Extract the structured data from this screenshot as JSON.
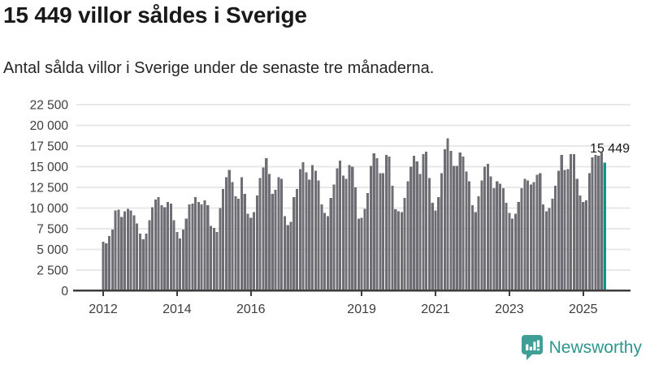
{
  "header": {
    "title": "15 449 villor såldes i Sverige",
    "subtitle": "Antal sålda villor i Sverige under de senaste tre månaderna."
  },
  "chart_data": {
    "type": "bar",
    "title": "15 449 villor såldes i Sverige",
    "subtitle": "Antal sålda villor i Sverige under de senaste tre månaderna.",
    "x_start": "2012-01",
    "x_end": "2025-08",
    "frequency": "monthly",
    "values": [
      5900,
      5700,
      6600,
      7400,
      9700,
      9800,
      8900,
      9600,
      9900,
      9700,
      9100,
      8100,
      6900,
      6200,
      6900,
      8500,
      10100,
      11000,
      11300,
      10300,
      10100,
      10700,
      10500,
      8500,
      7100,
      6300,
      7400,
      8700,
      10400,
      10500,
      11300,
      10700,
      10400,
      10900,
      10300,
      7800,
      7600,
      7100,
      10000,
      12300,
      13700,
      14600,
      13100,
      11400,
      11100,
      13700,
      11700,
      9300,
      8800,
      9500,
      11500,
      13600,
      14900,
      16000,
      14100,
      11700,
      12200,
      13700,
      13500,
      9000,
      7900,
      8300,
      11300,
      12300,
      14700,
      15500,
      14300,
      13400,
      15200,
      14500,
      13300,
      10400,
      9400,
      9000,
      11200,
      12800,
      14800,
      15700,
      13900,
      13500,
      15200,
      15000,
      12500,
      8700,
      8800,
      9900,
      11800,
      15100,
      16600,
      16000,
      14200,
      14200,
      16400,
      16200,
      12700,
      9850,
      9600,
      9500,
      11200,
      13200,
      15000,
      16300,
      15600,
      14100,
      16500,
      16800,
      13600,
      10600,
      9700,
      11300,
      14200,
      17100,
      18400,
      16900,
      15100,
      15100,
      16700,
      16200,
      14400,
      13200,
      10300,
      9500,
      11400,
      13300,
      15000,
      15300,
      13800,
      12400,
      13200,
      12900,
      12400,
      10600,
      9400,
      8700,
      9300,
      10700,
      12400,
      13500,
      13300,
      12800,
      13100,
      14000,
      14200,
      10400,
      9600,
      10000,
      11100,
      12700,
      14500,
      16400,
      14600,
      14700,
      16500,
      16500,
      13500,
      11500,
      10700,
      10900,
      14200,
      16100,
      16400,
      16300,
      16700,
      15449
    ],
    "ylim": [
      0,
      22500
    ],
    "yticks": [
      0,
      2500,
      5000,
      7500,
      10000,
      12500,
      15000,
      17500,
      20000,
      22500
    ],
    "ytick_labels": [
      "0",
      "2 500",
      "5 000",
      "7 500",
      "10 000",
      "12 500",
      "15 000",
      "17 500",
      "20 000",
      "22 500"
    ],
    "xtick_labels": [
      "2012",
      "2014",
      "2016",
      "2019",
      "2021",
      "2023",
      "2025"
    ],
    "xtick_month_index": [
      0,
      24,
      48,
      84,
      108,
      132,
      156
    ],
    "grid": true,
    "legend": "none",
    "bar_color": "#6e6e74",
    "highlight": {
      "index": 163,
      "value": 15449,
      "label": "15 449",
      "color": "#0e948c"
    }
  },
  "footer": {
    "brand": "Newsworthy",
    "logo_icon": "newsworthy-speech-bubble-bar-chart-icon",
    "brand_color": "#2e968c",
    "logo_color": "#3f9e96"
  }
}
